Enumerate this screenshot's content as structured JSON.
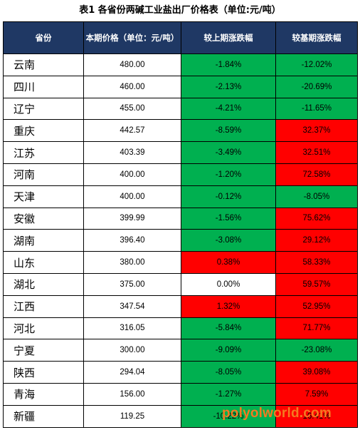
{
  "caption": "表1   各省份两碱工业盐出厂价格表（单位:元/吨）",
  "columns": {
    "province": "省份",
    "price": "本期价格（单位：元/吨）",
    "mom": "较上期涨跌幅",
    "yoy": "较基期涨跌幅"
  },
  "rows": [
    {
      "province": "云南",
      "price": "480.00",
      "mom": "-1.84%",
      "yoy": "-12.02%"
    },
    {
      "province": "四川",
      "price": "460.00",
      "mom": "-2.13%",
      "yoy": "-20.69%"
    },
    {
      "province": "辽宁",
      "price": "455.00",
      "mom": "-4.21%",
      "yoy": "-11.65%"
    },
    {
      "province": "重庆",
      "price": "442.57",
      "mom": "-8.59%",
      "yoy": "32.37%"
    },
    {
      "province": "江苏",
      "price": "403.39",
      "mom": "-3.49%",
      "yoy": "32.51%"
    },
    {
      "province": "河南",
      "price": "400.00",
      "mom": "-1.20%",
      "yoy": "72.58%"
    },
    {
      "province": "天津",
      "price": "400.00",
      "mom": "-0.12%",
      "yoy": "-8.05%"
    },
    {
      "province": "安徽",
      "price": "399.99",
      "mom": "-1.56%",
      "yoy": "75.62%"
    },
    {
      "province": "湖南",
      "price": "396.40",
      "mom": "-3.08%",
      "yoy": "29.12%"
    },
    {
      "province": "山东",
      "price": "380.00",
      "mom": "0.38%",
      "yoy": "58.33%"
    },
    {
      "province": "湖北",
      "price": "375.00",
      "mom": "0.00%",
      "yoy": "59.57%"
    },
    {
      "province": "江西",
      "price": "347.54",
      "mom": "1.32%",
      "yoy": "52.95%"
    },
    {
      "province": "河北",
      "price": "316.05",
      "mom": "-5.84%",
      "yoy": "71.77%"
    },
    {
      "province": "宁夏",
      "price": "300.00",
      "mom": "-9.09%",
      "yoy": "-23.08%"
    },
    {
      "province": "陕西",
      "price": "294.04",
      "mom": "-8.05%",
      "yoy": "39.08%"
    },
    {
      "province": "青海",
      "price": "156.00",
      "mom": "-1.27%",
      "yoy": "7.59%"
    },
    {
      "province": "新疆",
      "price": "119.25",
      "mom": "-10.22%",
      "yoy": "16.41%"
    }
  ],
  "colors": {
    "header_bg": "#1f3864",
    "increase": "#ff0000",
    "decrease": "#00b050",
    "unchanged": "#ffffff",
    "watermark": "#f47a20"
  },
  "watermark": "polyolworld.com"
}
